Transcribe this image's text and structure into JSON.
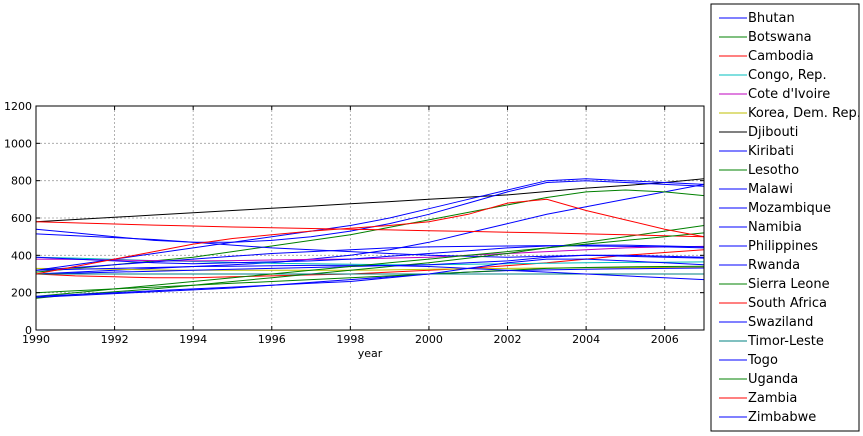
{
  "chart_data": {
    "type": "line",
    "title": "",
    "xlabel": "year",
    "ylabel": "",
    "xlim": [
      1990,
      2007
    ],
    "ylim": [
      0,
      1200
    ],
    "xticks": [
      1990,
      1992,
      1994,
      1996,
      1998,
      2000,
      2002,
      2004,
      2006
    ],
    "yticks": [
      0,
      200,
      400,
      600,
      800,
      1000,
      1200
    ],
    "grid": true,
    "legend_position": "right, outside plot",
    "x": [
      1990,
      1991,
      1992,
      1993,
      1994,
      1995,
      1996,
      1997,
      1998,
      1999,
      2000,
      2001,
      2002,
      2003,
      2004,
      2005,
      2006,
      2007
    ],
    "series": [
      {
        "name": "Bhutan",
        "color": "#0000ff",
        "values": [
          300,
          310,
          320,
          330,
          340,
          350,
          360,
          380,
          400,
          430,
          470,
          520,
          570,
          620,
          660,
          700,
          740,
          780
        ]
      },
      {
        "name": "Botswana",
        "color": "#008000",
        "values": [
          310,
          330,
          350,
          370,
          390,
          420,
          450,
          480,
          510,
          550,
          590,
          630,
          670,
          710,
          740,
          750,
          740,
          720
        ]
      },
      {
        "name": "Cambodia",
        "color": "#ff0000",
        "values": [
          300,
          290,
          285,
          280,
          280,
          285,
          290,
          295,
          300,
          310,
          320,
          330,
          345,
          360,
          380,
          400,
          415,
          430
        ]
      },
      {
        "name": "Congo, Rep.",
        "color": "#00bfbf",
        "values": [
          390,
          385,
          378,
          372,
          367,
          362,
          358,
          355,
          352,
          350,
          350,
          352,
          355,
          358,
          360,
          362,
          363,
          365
        ]
      },
      {
        "name": "Cote d'Ivoire",
        "color": "#bf00bf",
        "values": [
          380,
          378,
          375,
          372,
          370,
          372,
          375,
          378,
          380,
          385,
          390,
          400,
          410,
          420,
          430,
          440,
          445,
          448
        ]
      },
      {
        "name": "Korea, Dem. Rep.",
        "color": "#bfbf00",
        "values": [
          330,
          328,
          325,
          322,
          320,
          320,
          320,
          320,
          320,
          322,
          325,
          328,
          330,
          332,
          333,
          334,
          335,
          336
        ]
      },
      {
        "name": "Djibouti",
        "color": "#000000",
        "values": [
          580,
          592,
          604,
          616,
          628,
          640,
          652,
          664,
          676,
          688,
          700,
          712,
          724,
          742,
          760,
          774,
          790,
          810
        ]
      },
      {
        "name": "Kiribati",
        "color": "#0000ff",
        "values": [
          515,
          505,
          495,
          485,
          470,
          455,
          440,
          430,
          420,
          410,
          400,
          395,
          390,
          395,
          400,
          400,
          395,
          390
        ]
      },
      {
        "name": "Lesotho",
        "color": "#008000",
        "values": [
          170,
          190,
          205,
          220,
          240,
          260,
          280,
          300,
          320,
          340,
          360,
          385,
          410,
          440,
          470,
          500,
          530,
          560
        ]
      },
      {
        "name": "Malawi",
        "color": "#0000ff",
        "values": [
          300,
          305,
          310,
          315,
          320,
          325,
          330,
          335,
          340,
          345,
          350,
          360,
          370,
          390,
          400,
          395,
          390,
          385
        ]
      },
      {
        "name": "Mozambique",
        "color": "#0000ff",
        "values": [
          320,
          335,
          350,
          365,
          380,
          395,
          410,
          420,
          430,
          440,
          445,
          448,
          450,
          452,
          450,
          448,
          445,
          440
        ]
      },
      {
        "name": "Namibia",
        "color": "#0000ff",
        "values": [
          540,
          520,
          500,
          480,
          470,
          470,
          480,
          500,
          530,
          570,
          620,
          680,
          740,
          790,
          800,
          790,
          780,
          770
        ]
      },
      {
        "name": "Philippines",
        "color": "#0000ff",
        "values": [
          320,
          350,
          380,
          410,
          440,
          470,
          500,
          530,
          560,
          600,
          650,
          700,
          750,
          800,
          810,
          800,
          790,
          780
        ]
      },
      {
        "name": "Rwanda",
        "color": "#0000ff",
        "values": [
          175,
          185,
          195,
          205,
          215,
          225,
          240,
          255,
          270,
          285,
          300,
          310,
          318,
          322,
          325,
          328,
          330,
          332
        ]
      },
      {
        "name": "Sierra Leone",
        "color": "#008000",
        "values": [
          200,
          210,
          220,
          230,
          240,
          250,
          260,
          270,
          280,
          290,
          300,
          310,
          320,
          330,
          335,
          338,
          340,
          342
        ]
      },
      {
        "name": "South Africa",
        "color": "#ff0000",
        "values": [
          580,
          574,
          568,
          562,
          557,
          552,
          548,
          544,
          540,
          536,
          532,
          528,
          524,
          520,
          515,
          510,
          505,
          500
        ]
      },
      {
        "name": "Swaziland",
        "color": "#0000ff",
        "values": [
          390,
          380,
          370,
          360,
          355,
          360,
          365,
          370,
          380,
          395,
          410,
          425,
          440,
          450,
          455,
          455,
          450,
          445
        ]
      },
      {
        "name": "Timor-Leste",
        "color": "#008080",
        "values": [
          300,
          300,
          300,
          300,
          300,
          300,
          300,
          300,
          300,
          300,
          300,
          300,
          300,
          300,
          300,
          300,
          300,
          300
        ]
      },
      {
        "name": "Togo",
        "color": "#0000ff",
        "values": [
          320,
          325,
          330,
          335,
          340,
          342,
          344,
          346,
          346,
          345,
          340,
          330,
          320,
          310,
          300,
          290,
          280,
          270
        ]
      },
      {
        "name": "Uganda",
        "color": "#008000",
        "values": [
          180,
          200,
          220,
          240,
          260,
          280,
          300,
          320,
          340,
          360,
          380,
          400,
          420,
          440,
          460,
          480,
          500,
          520
        ]
      },
      {
        "name": "Zambia",
        "color": "#ff0000",
        "values": [
          300,
          340,
          380,
          420,
          460,
          490,
          510,
          530,
          545,
          560,
          580,
          620,
          680,
          700,
          640,
          590,
          540,
          500
        ]
      },
      {
        "name": "Zimbabwe",
        "color": "#0000ff",
        "values": [
          180,
          190,
          200,
          210,
          220,
          230,
          240,
          250,
          260,
          280,
          300,
          330,
          360,
          380,
          380,
          370,
          360,
          350
        ]
      }
    ]
  }
}
